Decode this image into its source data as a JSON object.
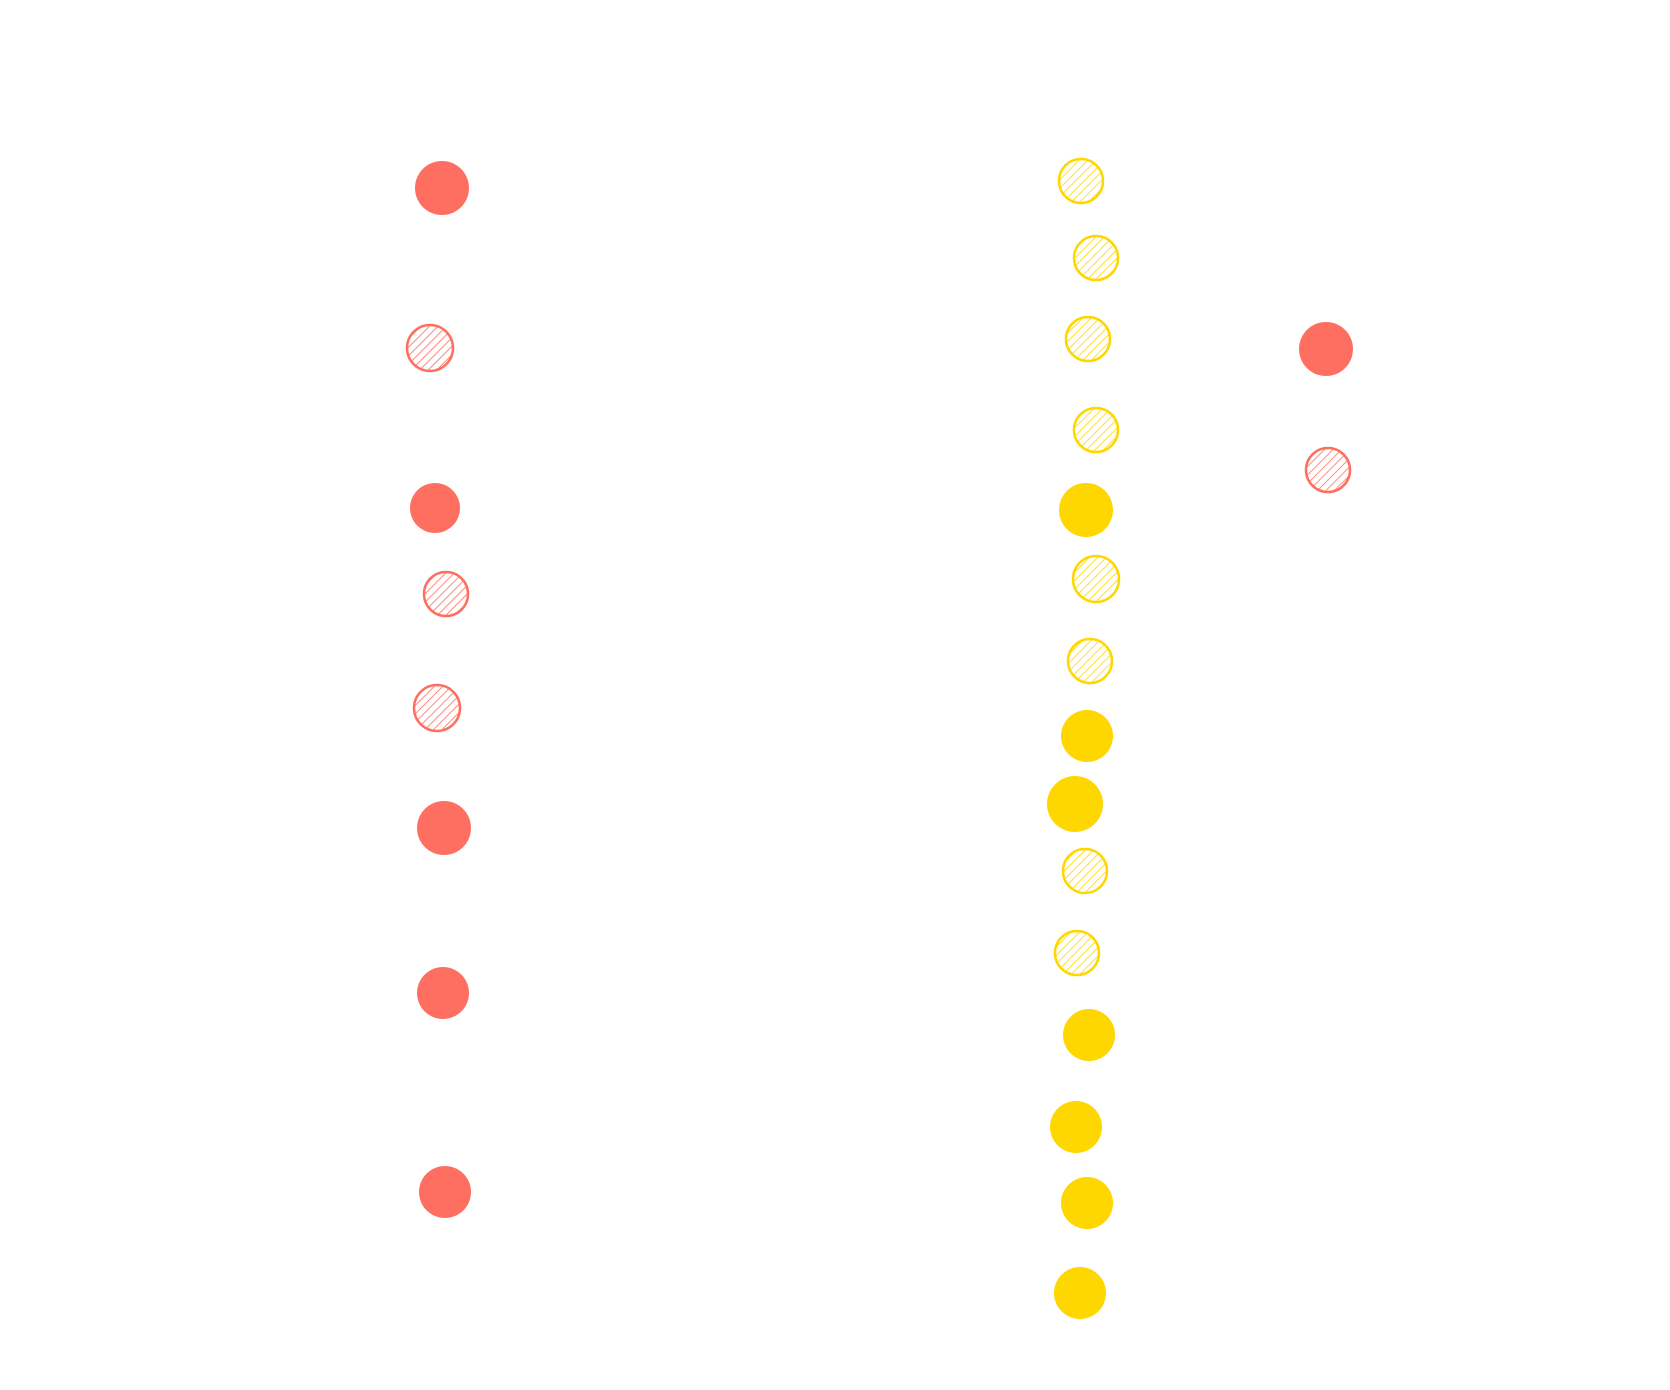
{
  "colors": {
    "background": "#ffffff",
    "red": "#ff6f61",
    "yellow": "#ffd700"
  },
  "dots": [
    {
      "name": "red-dot-solid",
      "color": "red",
      "style": "solid"
    },
    {
      "name": "red-dot-hatched",
      "color": "red",
      "style": "hatched"
    },
    {
      "name": "red-dot-solid",
      "color": "red",
      "style": "solid"
    },
    {
      "name": "red-dot-hatched",
      "color": "red",
      "style": "hatched"
    },
    {
      "name": "red-dot-hatched",
      "color": "red",
      "style": "hatched"
    },
    {
      "name": "red-dot-solid",
      "color": "red",
      "style": "solid"
    },
    {
      "name": "red-dot-solid",
      "color": "red",
      "style": "solid"
    },
    {
      "name": "red-dot-solid",
      "color": "red",
      "style": "solid"
    },
    {
      "name": "yellow-dot-hatched",
      "color": "yellow",
      "style": "hatched"
    },
    {
      "name": "yellow-dot-hatched",
      "color": "yellow",
      "style": "hatched"
    },
    {
      "name": "yellow-dot-hatched",
      "color": "yellow",
      "style": "hatched"
    },
    {
      "name": "yellow-dot-hatched",
      "color": "yellow",
      "style": "hatched"
    },
    {
      "name": "yellow-dot-solid",
      "color": "yellow",
      "style": "solid"
    },
    {
      "name": "yellow-dot-hatched",
      "color": "yellow",
      "style": "hatched"
    },
    {
      "name": "yellow-dot-hatched",
      "color": "yellow",
      "style": "hatched"
    },
    {
      "name": "yellow-dot-solid",
      "color": "yellow",
      "style": "solid"
    },
    {
      "name": "yellow-dot-solid",
      "color": "yellow",
      "style": "solid"
    },
    {
      "name": "yellow-dot-hatched",
      "color": "yellow",
      "style": "hatched"
    },
    {
      "name": "yellow-dot-hatched",
      "color": "yellow",
      "style": "hatched"
    },
    {
      "name": "yellow-dot-solid",
      "color": "yellow",
      "style": "solid"
    },
    {
      "name": "yellow-dot-solid",
      "color": "yellow",
      "style": "solid"
    },
    {
      "name": "yellow-dot-solid",
      "color": "yellow",
      "style": "solid"
    },
    {
      "name": "yellow-dot-solid",
      "color": "yellow",
      "style": "solid"
    },
    {
      "name": "red-dot-solid",
      "color": "red",
      "style": "solid"
    },
    {
      "name": "red-dot-hatched",
      "color": "red",
      "style": "hatched"
    }
  ]
}
